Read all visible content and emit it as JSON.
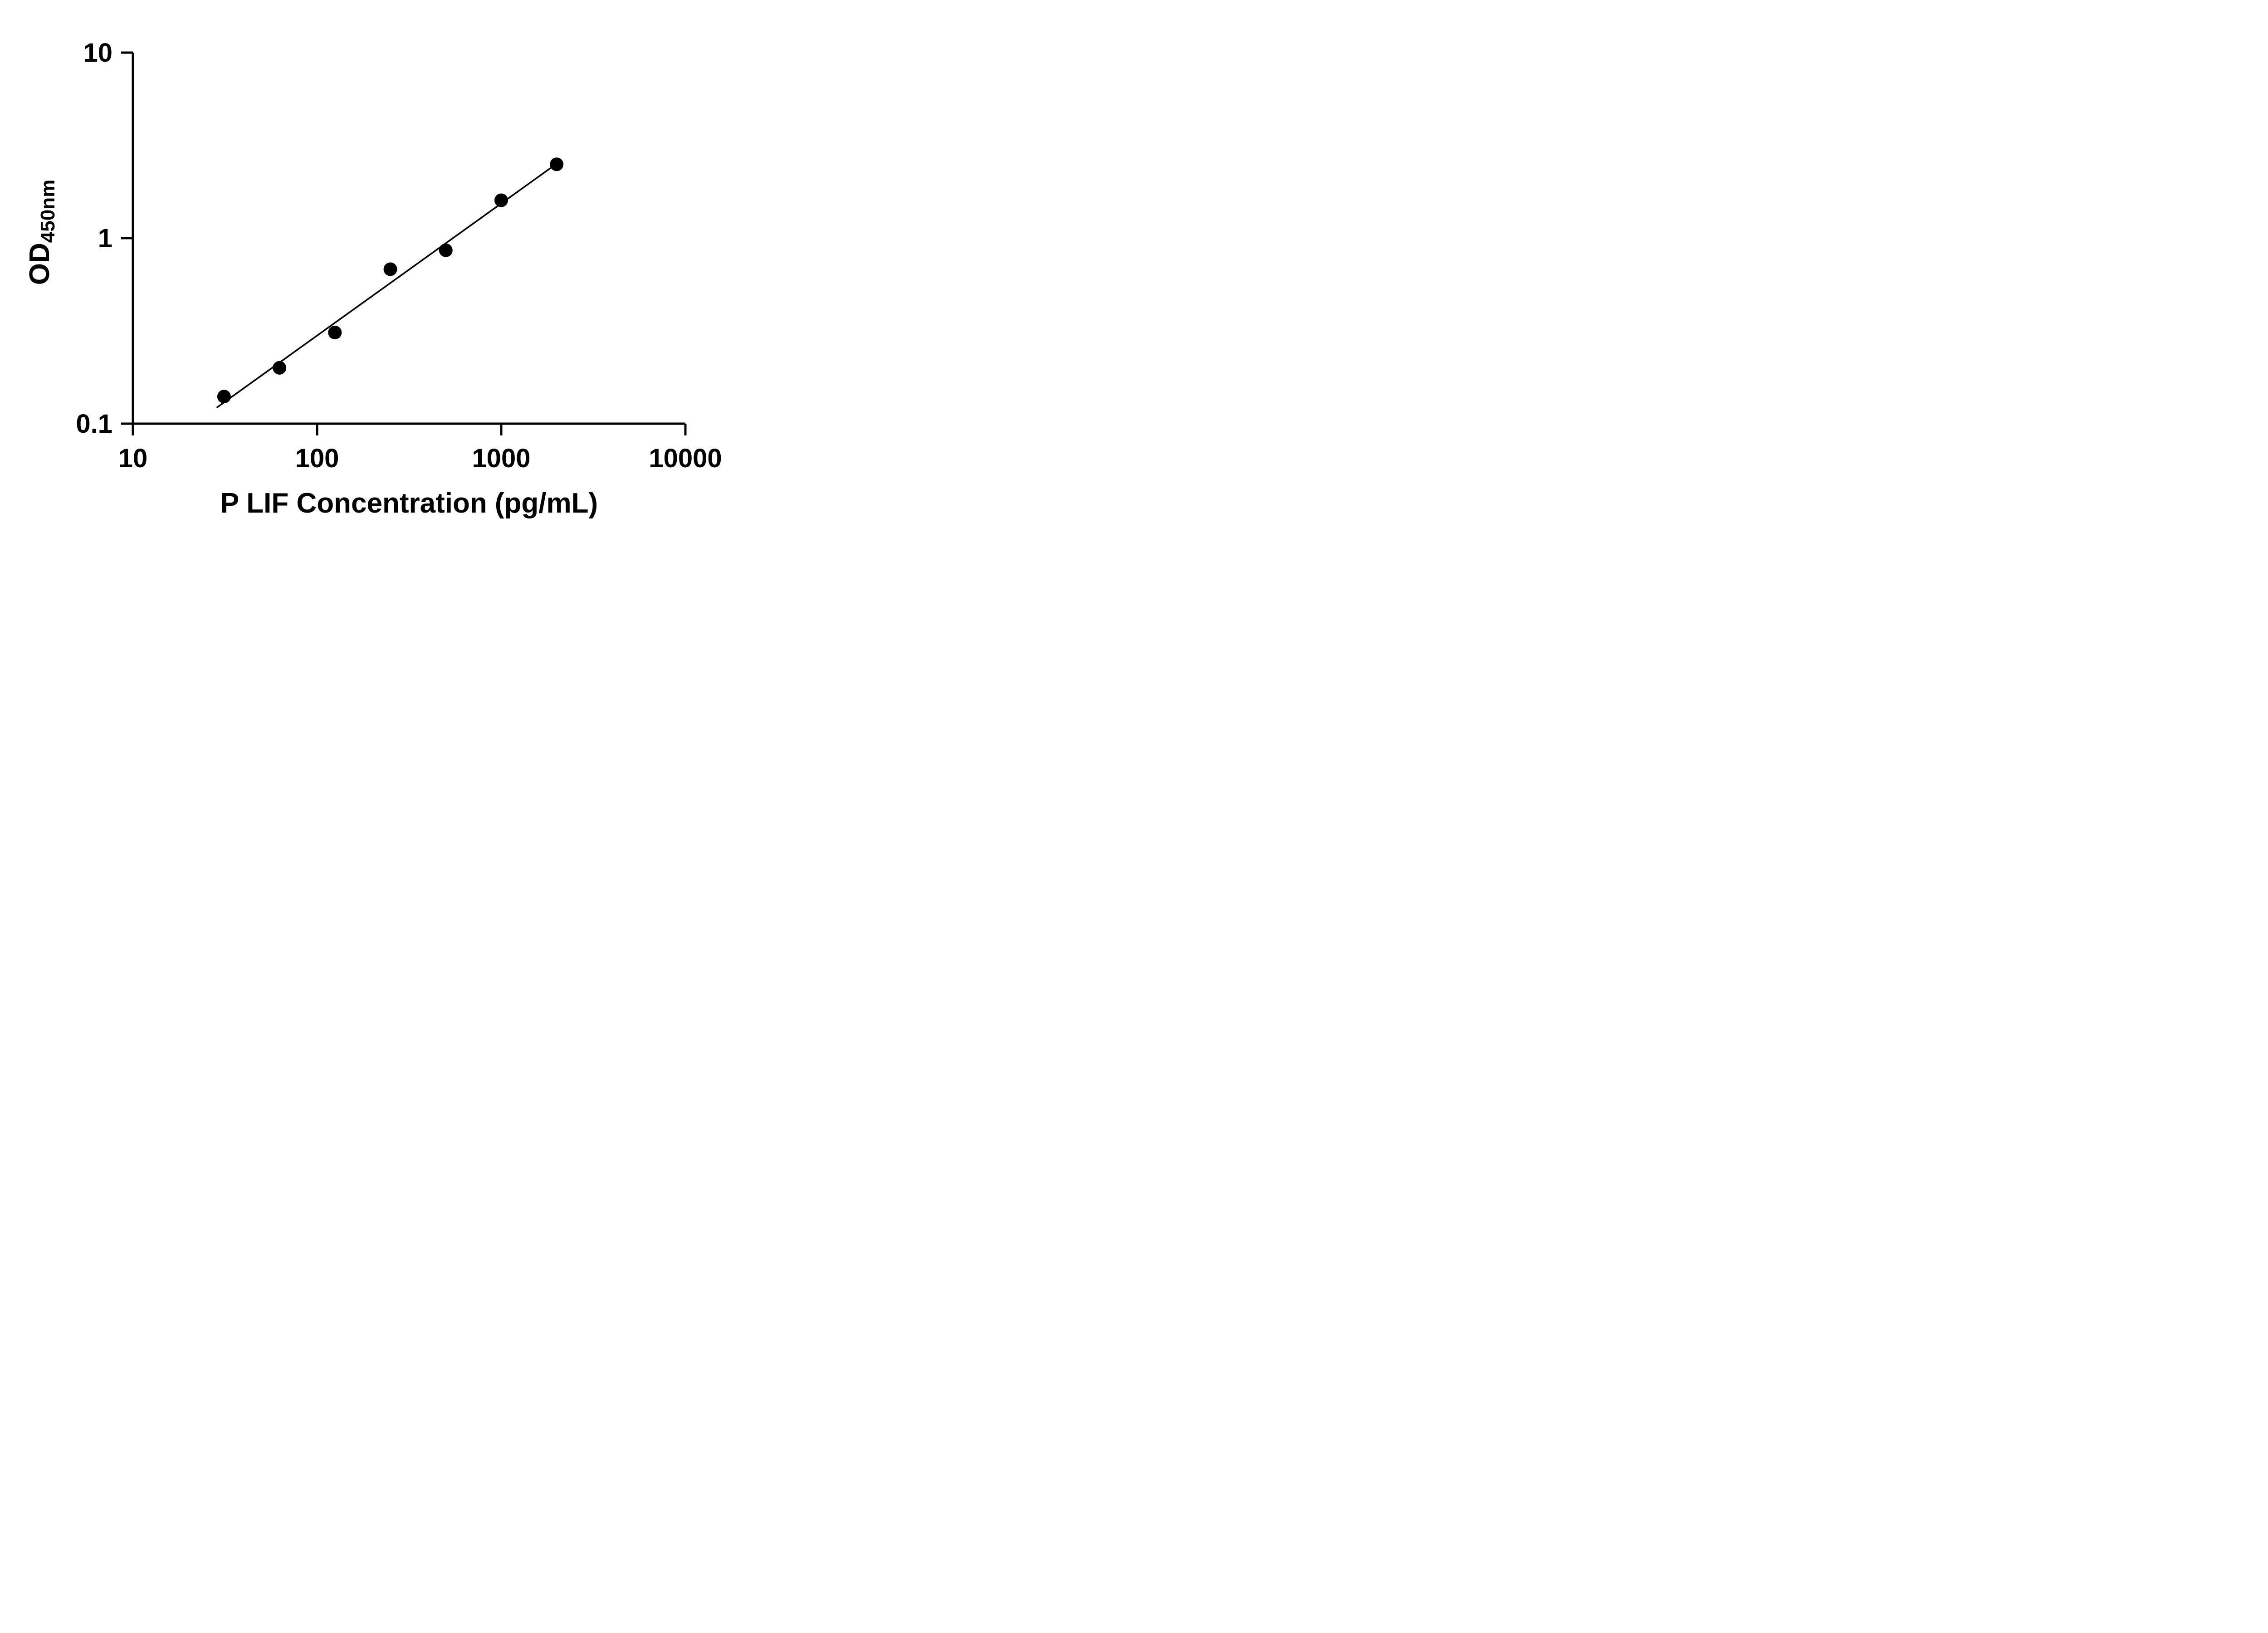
{
  "chart_data": {
    "type": "scatter",
    "title": "",
    "xlabel": "P LIF Concentration (pg/mL)",
    "ylabel_main": "OD",
    "ylabel_sub": "450nm",
    "x_scale": "log",
    "y_scale": "log",
    "xlim": [
      10,
      10000
    ],
    "ylim": [
      0.1,
      10
    ],
    "x_ticks": [
      10,
      100,
      1000,
      10000
    ],
    "x_tick_labels": [
      "10",
      "100",
      "1000",
      "10000"
    ],
    "y_ticks": [
      0.1,
      1,
      10
    ],
    "y_tick_labels": [
      "0.1",
      "1",
      "10"
    ],
    "grid": "off",
    "legend": "none",
    "points": {
      "x": [
        31.25,
        62.5,
        125,
        250,
        500,
        1000,
        2000
      ],
      "y": [
        0.14,
        0.2,
        0.31,
        0.68,
        0.86,
        1.6,
        2.5
      ]
    },
    "trendline": {
      "x1": 28.5,
      "y1": 0.122,
      "x2": 2000,
      "y2": 2.52
    },
    "style": {
      "marker_color": "#000000",
      "line_color": "#000000",
      "axis_color": "#000000",
      "background": "#ffffff",
      "marker_radius": 15,
      "axis_width": 5,
      "tick_length": 26,
      "line_width": 3.5
    }
  }
}
